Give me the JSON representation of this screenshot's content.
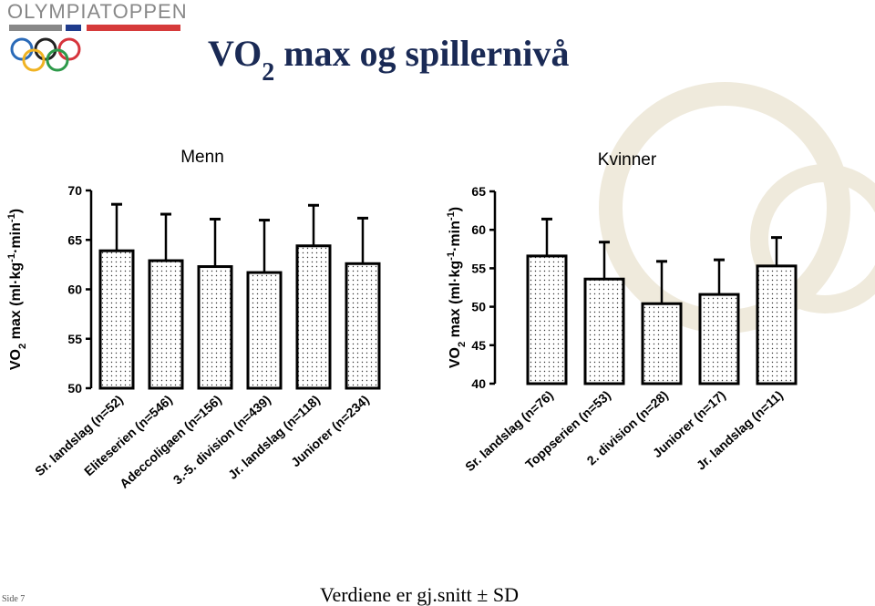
{
  "header": {
    "logo": "OLYMPIATOPPEN",
    "title_parts": [
      {
        "text": "VO"
      },
      {
        "text": "2",
        "shift": "sub"
      },
      {
        "text": " max og spillernivå"
      }
    ]
  },
  "chart_data": [
    {
      "type": "bar",
      "title": "Menn",
      "y_label_parts": [
        {
          "text": "VO"
        },
        {
          "text": "2",
          "shift": "sub"
        },
        {
          "text": " max (ml·kg"
        },
        {
          "text": "-1",
          "shift": "super"
        },
        {
          "text": "·min"
        },
        {
          "text": "-1",
          "shift": "super"
        },
        {
          "text": ")"
        }
      ],
      "categories": [
        "Sr. landslag (n=52)",
        "Eliteserien (n=546)",
        "Adeccoligaen (n=156)",
        "3.-5. division (n=439)",
        "Jr. landslag (n=118)",
        "Juniorer (n=234)"
      ],
      "series": [
        {
          "values": [
            63.9,
            62.9,
            62.3,
            61.7,
            64.4,
            62.6
          ],
          "errors": [
            4.7,
            4.7,
            4.8,
            5.3,
            4.1,
            4.6
          ],
          "color": "#ffffff"
        }
      ],
      "ylim": [
        50,
        70
      ],
      "yticks": [
        50,
        55,
        60,
        65,
        70
      ]
    },
    {
      "type": "bar",
      "title": "Kvinner",
      "y_label_parts": [
        {
          "text": "VO"
        },
        {
          "text": "2",
          "shift": "sub"
        },
        {
          "text": " max (ml·kg"
        },
        {
          "text": "-1",
          "shift": "super"
        },
        {
          "text": "·min"
        },
        {
          "text": "-1",
          "shift": "super"
        },
        {
          "text": ")"
        }
      ],
      "categories": [
        "Sr. landslag (n=76)",
        "Toppserien (n=53)",
        "2. division (n=28)",
        "Juniorer (n=17)",
        "Jr. landslag (n=11)"
      ],
      "series": [
        {
          "values": [
            56.6,
            53.6,
            50.4,
            51.6,
            55.3
          ],
          "errors": [
            4.8,
            4.8,
            5.5,
            4.5,
            3.7
          ],
          "color": "#ffffff"
        }
      ],
      "ylim": [
        40,
        65
      ],
      "yticks": [
        40,
        45,
        50,
        55,
        60,
        65
      ]
    }
  ],
  "footer": {
    "page": "Side 7",
    "note": "Verdiene er gj.snitt ± SD"
  }
}
